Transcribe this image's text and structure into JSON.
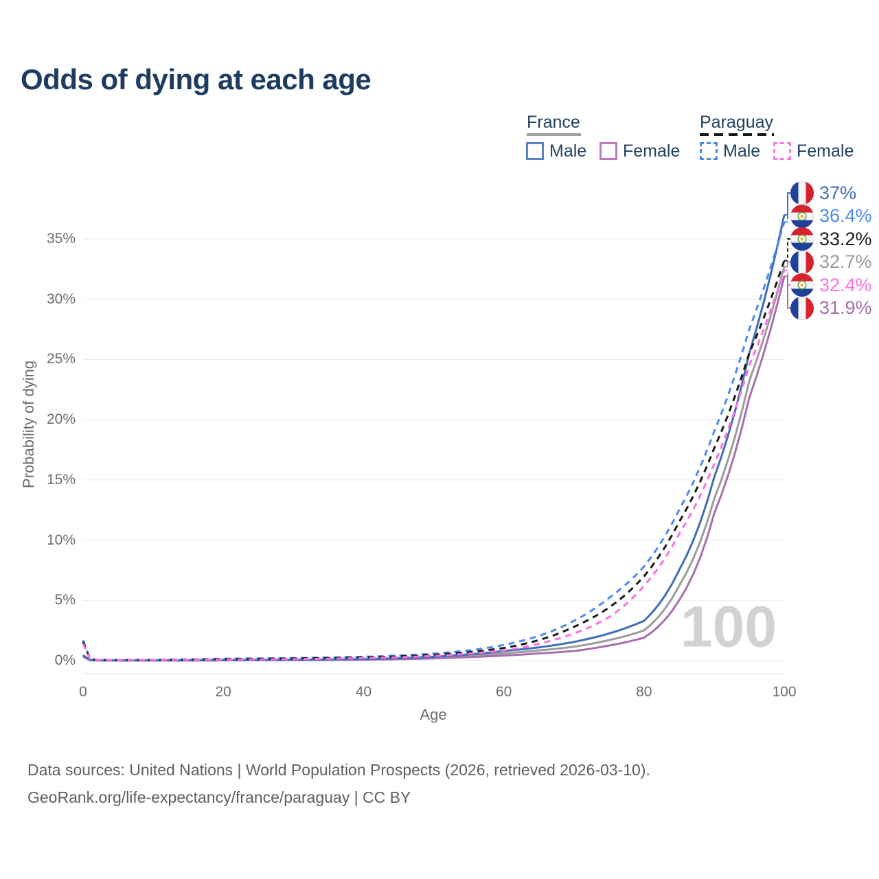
{
  "title": "Odds of dying at each age",
  "legend": {
    "groups": [
      {
        "label": "France",
        "line_style": "solid",
        "underline_color": "#9e9e9e",
        "items": [
          {
            "label": "Male",
            "swatch_color": "#5b84c4",
            "style": "solid"
          },
          {
            "label": "Female",
            "swatch_color": "#bd7ab8",
            "style": "solid"
          }
        ]
      },
      {
        "label": "Paraguay",
        "line_style": "dashed",
        "underline_color": "#161616",
        "items": [
          {
            "label": "Male",
            "swatch_color": "#4a8bef",
            "style": "dashed"
          },
          {
            "label": "Female",
            "swatch_color": "#fb79e3",
            "style": "dashed"
          }
        ]
      }
    ]
  },
  "chart_data": {
    "type": "line",
    "title": "Odds of dying at each age",
    "xlabel": "Age",
    "ylabel": "Probability of dying",
    "x_ticks": [
      0,
      20,
      40,
      60,
      80,
      100
    ],
    "y_ticks": [
      "0%",
      "5%",
      "10%",
      "15%",
      "20%",
      "25%",
      "30%",
      "35%"
    ],
    "xlim": [
      0,
      100
    ],
    "ylim": [
      "0%",
      "37%"
    ],
    "grid": "horizontal",
    "legend_position": "top-right",
    "watermark": "100",
    "ages": [
      0,
      1,
      2,
      5,
      10,
      15,
      20,
      25,
      30,
      35,
      40,
      45,
      50,
      55,
      60,
      65,
      70,
      75,
      80,
      85,
      90,
      95,
      100
    ],
    "series": [
      {
        "id": "france_both",
        "name": "France Both sexes",
        "country": "France",
        "color": "#9b9b9b",
        "dash": false,
        "values_pct": [
          0.4,
          0.03,
          0.02,
          0.01,
          0.01,
          0.02,
          0.03,
          0.04,
          0.05,
          0.07,
          0.1,
          0.16,
          0.25,
          0.4,
          0.6,
          0.85,
          1.15,
          1.7,
          2.5,
          6.2,
          13.4,
          23.2,
          32.7
        ]
      },
      {
        "id": "france_female",
        "name": "France Female",
        "country": "France",
        "color": "#a76fad",
        "dash": false,
        "values_pct": [
          0.35,
          0.03,
          0.01,
          0.01,
          0.01,
          0.01,
          0.02,
          0.03,
          0.04,
          0.05,
          0.08,
          0.12,
          0.19,
          0.29,
          0.42,
          0.6,
          0.8,
          1.25,
          1.9,
          5.0,
          12.2,
          21.8,
          31.9
        ]
      },
      {
        "id": "france_male",
        "name": "France Male",
        "country": "France",
        "color": "#3f6db6",
        "dash": false,
        "values_pct": [
          0.45,
          0.04,
          0.02,
          0.01,
          0.01,
          0.02,
          0.05,
          0.06,
          0.07,
          0.09,
          0.13,
          0.2,
          0.33,
          0.52,
          0.8,
          1.1,
          1.55,
          2.25,
          3.3,
          7.5,
          15.2,
          25.5,
          37.0
        ]
      },
      {
        "id": "paraguay_male",
        "name": "Paraguay Male",
        "country": "Paraguay",
        "color": "#4a8bef",
        "dash": true,
        "values_pct": [
          1.7,
          0.12,
          0.07,
          0.05,
          0.06,
          0.1,
          0.16,
          0.19,
          0.22,
          0.26,
          0.32,
          0.42,
          0.58,
          0.85,
          1.3,
          2.05,
          3.3,
          5.2,
          7.8,
          12.5,
          19.0,
          27.5,
          36.4
        ]
      },
      {
        "id": "paraguay_both",
        "name": "Paraguay Both sexes",
        "country": "Paraguay",
        "color": "#1a1a1a",
        "dash": true,
        "values_pct": [
          1.55,
          0.1,
          0.06,
          0.04,
          0.05,
          0.08,
          0.12,
          0.15,
          0.17,
          0.21,
          0.27,
          0.35,
          0.48,
          0.7,
          1.05,
          1.7,
          2.8,
          4.4,
          7.0,
          11.5,
          17.6,
          25.5,
          33.2
        ]
      },
      {
        "id": "paraguay_female",
        "name": "Paraguay Female",
        "country": "Paraguay",
        "color": "#fa70e0",
        "dash": true,
        "values_pct": [
          1.4,
          0.09,
          0.05,
          0.04,
          0.04,
          0.06,
          0.08,
          0.1,
          0.12,
          0.16,
          0.21,
          0.28,
          0.39,
          0.58,
          0.85,
          1.4,
          2.25,
          3.6,
          6.2,
          10.5,
          16.3,
          24.5,
          32.4
        ]
      }
    ],
    "end_labels": [
      {
        "series_id": "france_male",
        "text": "37%",
        "color": "#3f6db6",
        "flag": "france-flag-icon"
      },
      {
        "series_id": "paraguay_male",
        "text": "36.4%",
        "color": "#4a8bef",
        "flag": "paraguay-flag-icon"
      },
      {
        "series_id": "paraguay_both",
        "text": "33.2%",
        "color": "#1c1c1c",
        "flag": "paraguay-flag-icon"
      },
      {
        "series_id": "france_both",
        "text": "32.7%",
        "color": "#9b9b9b",
        "flag": "france-flag-icon"
      },
      {
        "series_id": "paraguay_female",
        "text": "32.4%",
        "color": "#fa70e0",
        "flag": "paraguay-flag-icon"
      },
      {
        "series_id": "france_female",
        "text": "31.9%",
        "color": "#a76fad",
        "flag": "france-flag-icon"
      }
    ]
  },
  "footer": {
    "line1": "Data sources: United Nations | World Population Prospects (2026, retrieved 2026-03-10).",
    "line2": "GeoRank.org/life-expectancy/france/paraguay | CC BY"
  }
}
